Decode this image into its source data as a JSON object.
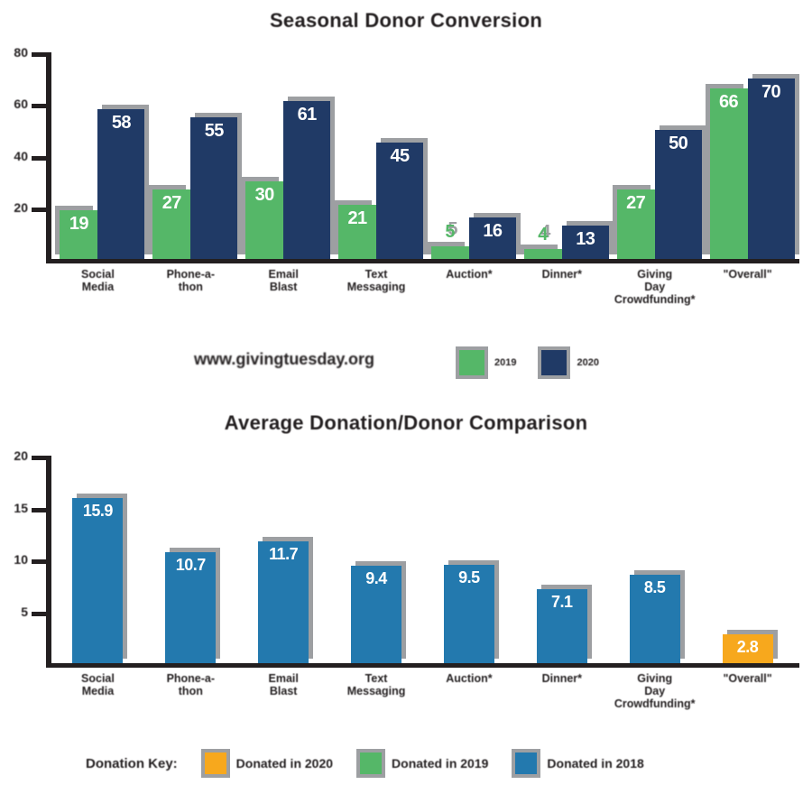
{
  "watermark": "www.givingtuesday.org",
  "colors": {
    "green": "#55B768",
    "navy": "#203A66",
    "blue": "#2379AE",
    "orange": "#F7A81D",
    "shadow": "#9D9FA2",
    "text": "#231F20",
    "value_text": "#FFFFFF",
    "background": "#FFFFFF"
  },
  "top_legend": {
    "items": [
      {
        "label": "2019",
        "color_key": "green"
      },
      {
        "label": "2020",
        "color_key": "navy"
      }
    ]
  },
  "bottom_legend": {
    "key_label": "Donation Key:",
    "items": [
      {
        "label": "Donated in 2020",
        "color_key": "orange"
      },
      {
        "label": "Donated in 2019",
        "color_key": "green"
      },
      {
        "label": "Donated in 2018",
        "color_key": "blue"
      }
    ]
  },
  "chart_data": [
    {
      "type": "bar",
      "title": "Seasonal Donor Conversion",
      "categories": [
        "Social\nMedia",
        "Phone-a-\nthon",
        "Email\nBlast",
        "Text\nMessaging",
        "Auction*",
        "Dinner*",
        "Giving\nDay\nCrowdfunding*",
        "\"Overall\""
      ],
      "series": [
        {
          "name": "2019",
          "color_key": "green",
          "values": [
            19,
            27,
            30,
            21,
            5,
            4,
            27,
            66
          ]
        },
        {
          "name": "2020",
          "color_key": "navy",
          "values": [
            58,
            55,
            61,
            45,
            16,
            13,
            50,
            70
          ]
        }
      ],
      "ylim": [
        0,
        80
      ],
      "yticks": [
        80,
        60,
        40,
        20
      ],
      "grid": false,
      "legend_position": "below-right-of-watermark"
    },
    {
      "type": "bar",
      "title": "Average Donation/Donor Comparison",
      "categories": [
        "Social\nMedia",
        "Phone-a-\nthon",
        "Email\nBlast",
        "Text\nMessaging",
        "Auction*",
        "Dinner*",
        "Giving\nDay\nCrowdfunding*",
        "\"Overall\""
      ],
      "series": [
        {
          "name": "Average",
          "values": [
            15.9,
            10.7,
            11.7,
            9.4,
            9.5,
            7.1,
            8.5,
            2.8
          ],
          "bar_color_keys": [
            "blue",
            "blue",
            "blue",
            "blue",
            "blue",
            "blue",
            "blue",
            "orange"
          ]
        }
      ],
      "ylim": [
        0,
        20
      ],
      "yticks": [
        20,
        15,
        10,
        5
      ],
      "grid": false,
      "legend_position": "bottom"
    }
  ]
}
